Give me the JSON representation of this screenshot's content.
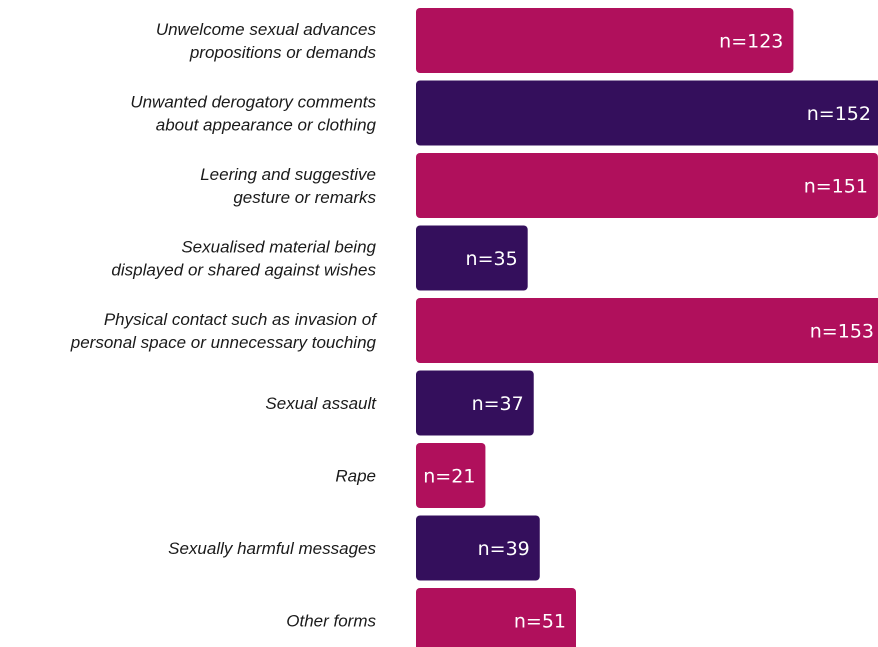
{
  "chart_data": {
    "type": "bar",
    "orientation": "horizontal",
    "categories": [
      [
        "Unwelcome sexual advances",
        "propositions or demands"
      ],
      [
        "Unwanted derogatory comments",
        "about appearance or clothing"
      ],
      [
        "Leering and suggestive",
        "gesture or remarks"
      ],
      [
        "Sexualised material being",
        "displayed or shared against wishes"
      ],
      [
        "Physical contact such as invasion of",
        "personal space or unnecessary touching"
      ],
      [
        "Sexual assault"
      ],
      [
        "Rape"
      ],
      [
        "Sexually harmful messages"
      ],
      [
        "Other forms"
      ]
    ],
    "values": [
      123,
      152,
      151,
      35,
      153,
      37,
      21,
      39,
      51
    ],
    "data_labels": [
      "n=123",
      "n=152",
      "n=151",
      "n=35",
      "n=153",
      "n=37",
      "n=21",
      "n=39",
      "n=51"
    ],
    "bar_colors": [
      "#b0105c",
      "#340f5c",
      "#b0105c",
      "#340f5c",
      "#b0105c",
      "#340f5c",
      "#b0105c",
      "#340f5c",
      "#b0105c"
    ],
    "xlim": [
      0,
      153
    ],
    "grid": false,
    "legend": "none"
  }
}
